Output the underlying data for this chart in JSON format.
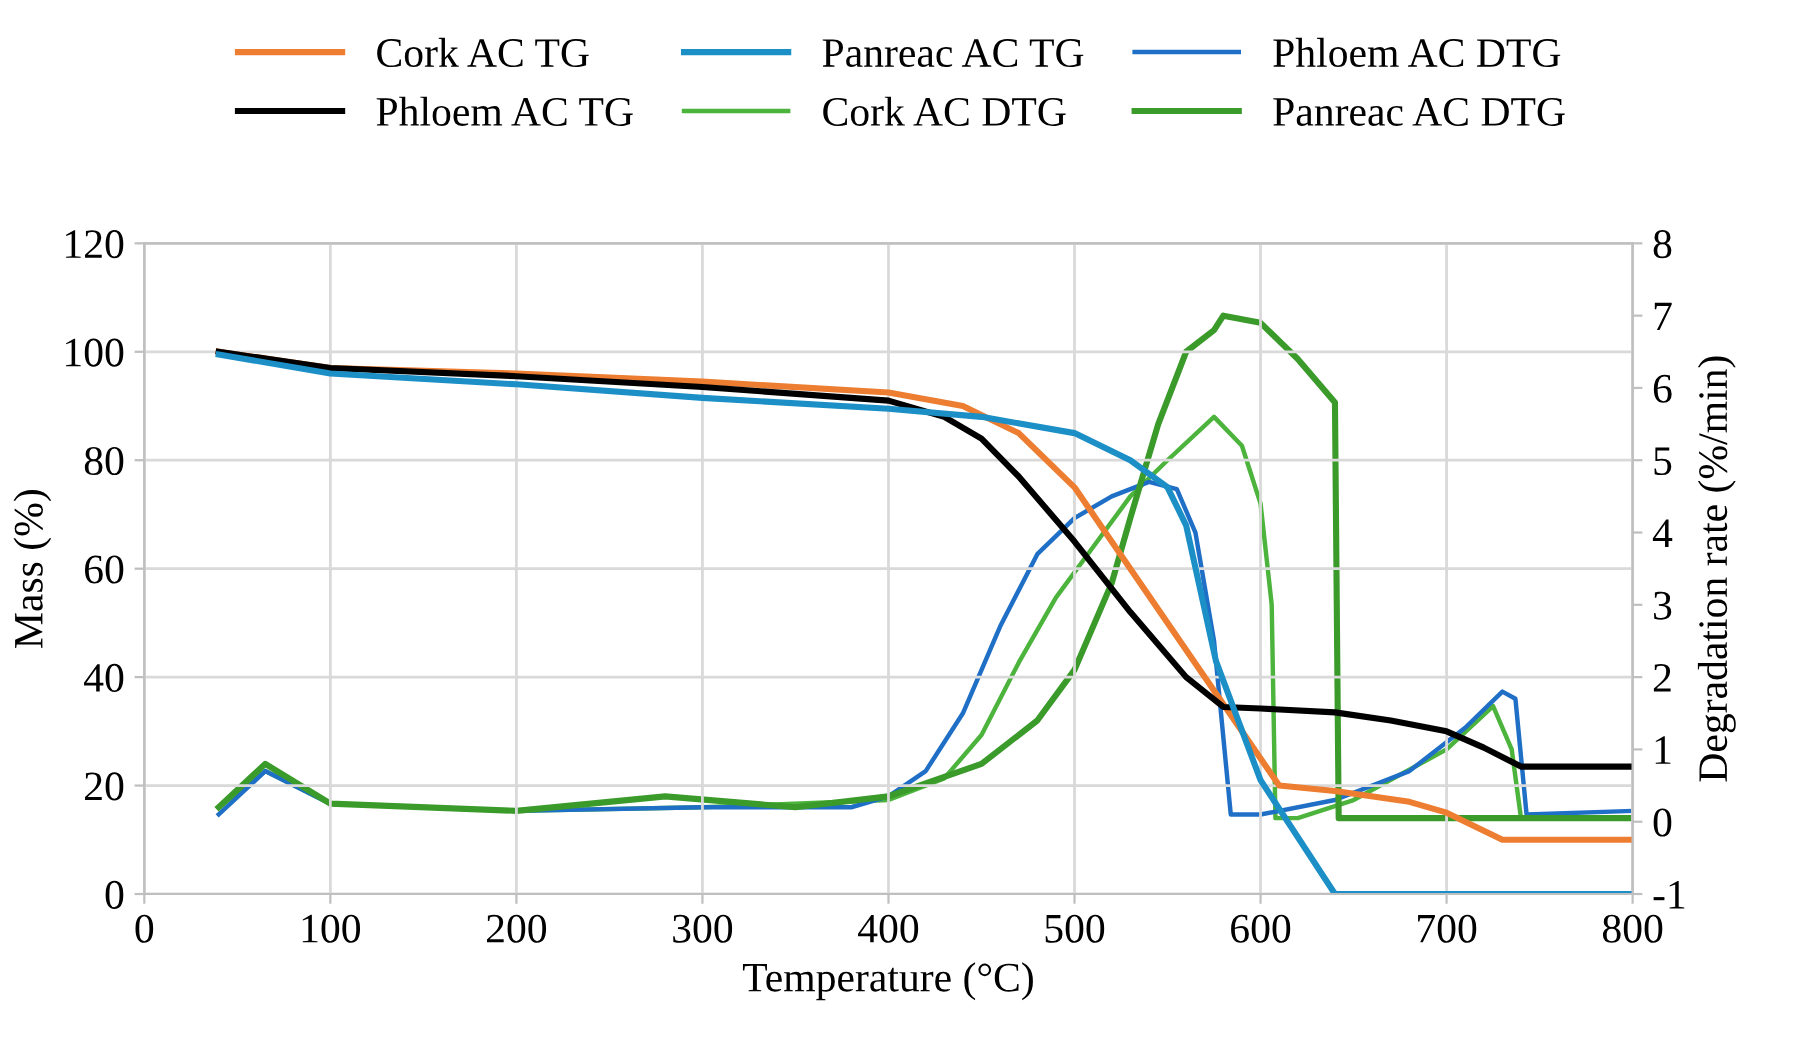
{
  "chart_data": {
    "type": "line",
    "xlabel": "Temperature (°C)",
    "ylabel": "Mass (%)",
    "y2label": "Degradation rate (%/min)",
    "xlim": [
      0,
      800
    ],
    "xticks": [
      0,
      100,
      200,
      300,
      400,
      500,
      600,
      700,
      800
    ],
    "ylim": [
      0,
      120
    ],
    "yticks": [
      0,
      20,
      40,
      60,
      80,
      100,
      120
    ],
    "y2lim": [
      -1,
      8
    ],
    "y2ticks": [
      -1,
      0,
      1,
      2,
      3,
      4,
      5,
      6,
      7,
      8
    ],
    "grid": true,
    "legend": "top",
    "marker": "none",
    "line_style": "solid",
    "series": [
      {
        "name": "Cork AC TG",
        "color": "#ed7d31",
        "x": [
          40,
          100,
          200,
          300,
          400,
          440,
          470,
          500,
          530,
          560,
          590,
          610,
          640,
          680,
          700,
          730,
          800
        ],
        "values": [
          100,
          97,
          96,
          94.5,
          92.5,
          90,
          85,
          75,
          60,
          45,
          30,
          20,
          19,
          17,
          15,
          10,
          10
        ]
      },
      {
        "name": "Phloem AC TG",
        "color": "#000000",
        "x": [
          40,
          100,
          200,
          300,
          400,
          430,
          450,
          470,
          500,
          530,
          560,
          580,
          600,
          640,
          670,
          700,
          720,
          740,
          800
        ],
        "values": [
          100,
          97,
          95.5,
          93.5,
          91,
          88,
          84,
          77,
          65,
          52,
          40,
          34.5,
          34.2,
          33.5,
          32,
          30,
          27,
          23.5,
          23.5
        ]
      },
      {
        "name": "Panreac AC TG",
        "color": "#1b8fc6",
        "x": [
          40,
          100,
          200,
          300,
          400,
          450,
          500,
          530,
          550,
          560,
          576,
          600,
          640,
          800
        ],
        "values": [
          99.5,
          96,
          94,
          91.5,
          89.5,
          88,
          85,
          80,
          75,
          68,
          43,
          21,
          0,
          0
        ]
      },
      {
        "name": "Cork AC DTG",
        "color": "#4cb43c",
        "x": [
          40,
          65,
          100,
          200,
          300,
          400,
          430,
          450,
          470,
          490,
          510,
          530,
          550,
          575,
          590,
          600,
          606,
          608,
          620,
          650,
          700,
          725,
          735,
          740,
          800
        ],
        "values": [
          0.2,
          0.7,
          0.25,
          0.15,
          0.2,
          0.3,
          0.6,
          1.2,
          2.2,
          3.1,
          3.8,
          4.5,
          5.0,
          5.6,
          5.2,
          4.4,
          3.0,
          0.05,
          0.05,
          0.3,
          1.0,
          1.6,
          1.0,
          0.05,
          0.05
        ],
        "axis": "y2"
      },
      {
        "name": "Phloem AC DTG",
        "color": "#1f6fc6",
        "x": [
          40,
          65,
          100,
          200,
          300,
          380,
          400,
          420,
          440,
          460,
          480,
          500,
          520,
          540,
          555,
          565,
          575,
          584,
          600,
          640,
          680,
          710,
          730,
          737,
          743,
          800
        ],
        "values": [
          0.1,
          0.7,
          0.25,
          0.15,
          0.2,
          0.2,
          0.35,
          0.7,
          1.5,
          2.7,
          3.7,
          4.2,
          4.5,
          4.7,
          4.6,
          4.0,
          2.5,
          0.1,
          0.1,
          0.3,
          0.7,
          1.3,
          1.8,
          1.7,
          0.1,
          0.15
        ],
        "axis": "y2"
      },
      {
        "name": "Panreac AC DTG",
        "color": "#3a9a2a",
        "x": [
          40,
          65,
          100,
          200,
          280,
          350,
          400,
          450,
          480,
          500,
          520,
          530,
          545,
          560,
          575,
          580,
          600,
          620,
          640,
          642,
          800
        ],
        "values": [
          0.2,
          0.8,
          0.25,
          0.15,
          0.35,
          0.2,
          0.35,
          0.8,
          1.4,
          2.1,
          3.3,
          4.2,
          5.5,
          6.5,
          6.8,
          7.0,
          6.9,
          6.4,
          5.8,
          0.05,
          0.05
        ],
        "axis": "y2"
      }
    ]
  }
}
